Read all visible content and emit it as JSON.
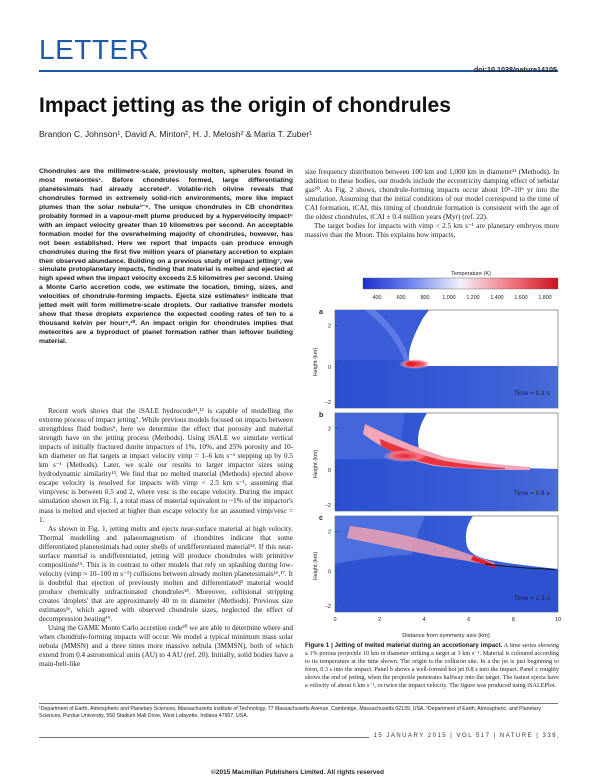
{
  "header": {
    "section": "LETTER",
    "doi": "doi:10.1038/nature14105"
  },
  "article": {
    "title": "Impact jetting as the origin of chondrules",
    "authors": "Brandon C. Johnson¹, David A. Minton², H. J. Melosh² & Maria T. Zuber¹"
  },
  "abstract": "Chondrules are the millimetre-scale, previously molten, spherules found in most meteorites¹. Before chondrules formed, large differentiating planetesimals had already accreted². Volatile-rich olivine reveals that chondrules formed in extremely solid-rich environments, more like impact plumes than the solar nebula³⁻⁶. The unique chondrules in CB chondrites probably formed in a vapour-melt plume produced by a hypervelocity impact⁶ with an impact velocity greater than 10 kilometres per second. An acceptable formation model for the overwhelming majority of chondrules, however, has not been established. Here we report that impacts can produce enough chondrules during the first five million years of planetary accretion to explain their observed abundance. Building on a previous study of impact jetting⁷, we simulate protoplanetary impacts, finding that material is melted and ejected at high speed when the impact velocity exceeds 2.5 kilometres per second. Using a Monte Carlo accretion code, we estimate the location, timing, sizes, and velocities of chondrule-forming impacts. Ejecta size estimates⁸ indicate that jetted melt will form millimetre-scale droplets. Our radiative transfer models show that these droplets experience the expected cooling rates of ten to a thousand kelvin per hour⁹,¹⁰. An impact origin for chondrules implies that meteorites are a byproduct of planet formation rather than leftover building material.",
  "body_left": [
    "Recent work shows that the iSALE hydrocode¹¹,¹² is capable of modelling the extreme process of impact jetting⁷. While previous models focused on impacts between strengthless fluid bodies⁹, here we determine the effect that porosity and material strength have on the jetting process (Methods). Using iSALE we simulate vertical impacts of initially fractured dunite impactors of 1%, 10%, and 25% porosity and 10-km diameter on flat targets at impact velocity vimp = 1–6 km s⁻¹ stepping up by 0.5 km s⁻¹ (Methods). Later, we scale our results to larger impactor sizes using hydrodynamic similarity¹³. We find that no melted material (Methods) ejected above escape velocity is resolved for impacts with vimp < 2.5 km s⁻¹, assuming that vimp/vesc is between 0.5 and 2, where vesc is the escape velocity. During the impact simulation shown in Fig. 1, a total mass of material equivalent to ~1% of the impactor's mass is melted and ejected at higher than escape velocity for an assumed vimp/vesc = 1.",
    "As shown in Fig. 1, jetting melts and ejects near-surface material at high velocity. Thermal modelling and palaeomagnetism of chondrites indicate that some differentiated planetesimals had outer shells of undifferentiated material¹⁴. If this near-surface material is undifferentiated, jetting will produce chondrules with primitive compositions¹⁵. This is in contrast to other models that rely on splashing during low-velocity (vimp ≈ 10–100 m s⁻¹) collisions between already molten planetesimals¹⁶,¹⁷. It is doubtful that ejection of previously molten and differentiated² material would produce chemically unfractionated chondrules¹⁸. Moreover, collisional stripping creates 'droplets' that are approximately 40 m in diameter (Methods). Previous size estimates¹⁶, which agreed with observed chondrule sizes, neglected the effect of decompression heating¹⁹.",
    "Using the GAME Monte Carlo accretion code²⁰ we are able to determine where and when chondrule-forming impacts will occur. We model a typical minimum mass solar nebula (MMSN) and a three times more massive nebula (3MMSN), both of which extend from 0.4 astronomical units (AU) to 4 AU (ref. 20). Initially, solid bodies have a main-belt-like"
  ],
  "body_right": [
    "size frequency distribution between 100 km and 1,000 km in diameter²¹ (Methods). In addition to these bodies, our models include the eccentricity damping effect of nebular gas²⁰. As Fig. 2 shows, chondrule-forming impacts occur about 10⁵–10⁶ yr into the simulation. Assuming that the initial conditions of our model correspond to the time of CAI formation, tCAI, this timing of chondrule formation is consistent with the age of the oldest chondrules, tCAI ± 0.4 million years (Myr) (ref. 22).",
    "The target bodies for impacts with vimp < 2.5 km s⁻¹ are planetary embryos more massive than the Moon. This explains how impacts,"
  ],
  "figure": {
    "colorbar": {
      "title": "Temperature (K)",
      "ticks": [
        "400",
        "600",
        "800",
        "1,000",
        "1,200",
        "1,400",
        "1,600",
        "1,800"
      ]
    },
    "panels": [
      {
        "label": "a",
        "time": "Time = 0.3 s"
      },
      {
        "label": "b",
        "time": "Time = 0.8 s"
      },
      {
        "label": "c",
        "time": "Time = 1.3 s"
      }
    ],
    "ylabel": "Height (km)",
    "xlabel": "Distance from symmetry axis (km)",
    "y_ticks": [
      "2",
      "0",
      "–2"
    ],
    "x_ticks": [
      "0",
      "2",
      "4",
      "6",
      "8",
      "10"
    ]
  },
  "caption": {
    "label": "Figure 1 | Jetting of melted material during an accretionary impact.",
    "text": "A time series showing a 1% porous projectile 10 km in diameter striking a target at 3 km s⁻¹. Material is coloured according to its temperature at the time shown. The origin is the collision site. In a the jet is just beginning to form, 0.3 s into the impact. Panel b shows a well-formed hot jet 0.8 s into the impact. Panel c roughly shows the end of jetting, when the projectile penetrates halfway into the target. The fastest ejecta have a velocity of about 6 km s⁻¹, or twice the impact velocity. The figure was produced using iSALEPlot."
  },
  "footnote": "¹Department of Earth, Atmospheric and Planetary Sciences, Massachusetts Institute of Technology, 77 Massachusetts Avenue, Cambridge, Massachusetts 02139, USA. ²Department of Earth, Atmospheric, and Planetary Sciences, Purdue University, 550 Stadium Mall Drive, West Lafayette, Indiana 47907, USA.",
  "footer": {
    "journal_line": "15 JANUARY 2015 | VOL 517 | NATURE | 339",
    "copyright": "©2015 Macmillan Publishers Limited. All rights reserved"
  },
  "colors": {
    "accent": "#1f5aa6",
    "cold": "#2a4fd0",
    "hot": "#e8202a"
  }
}
